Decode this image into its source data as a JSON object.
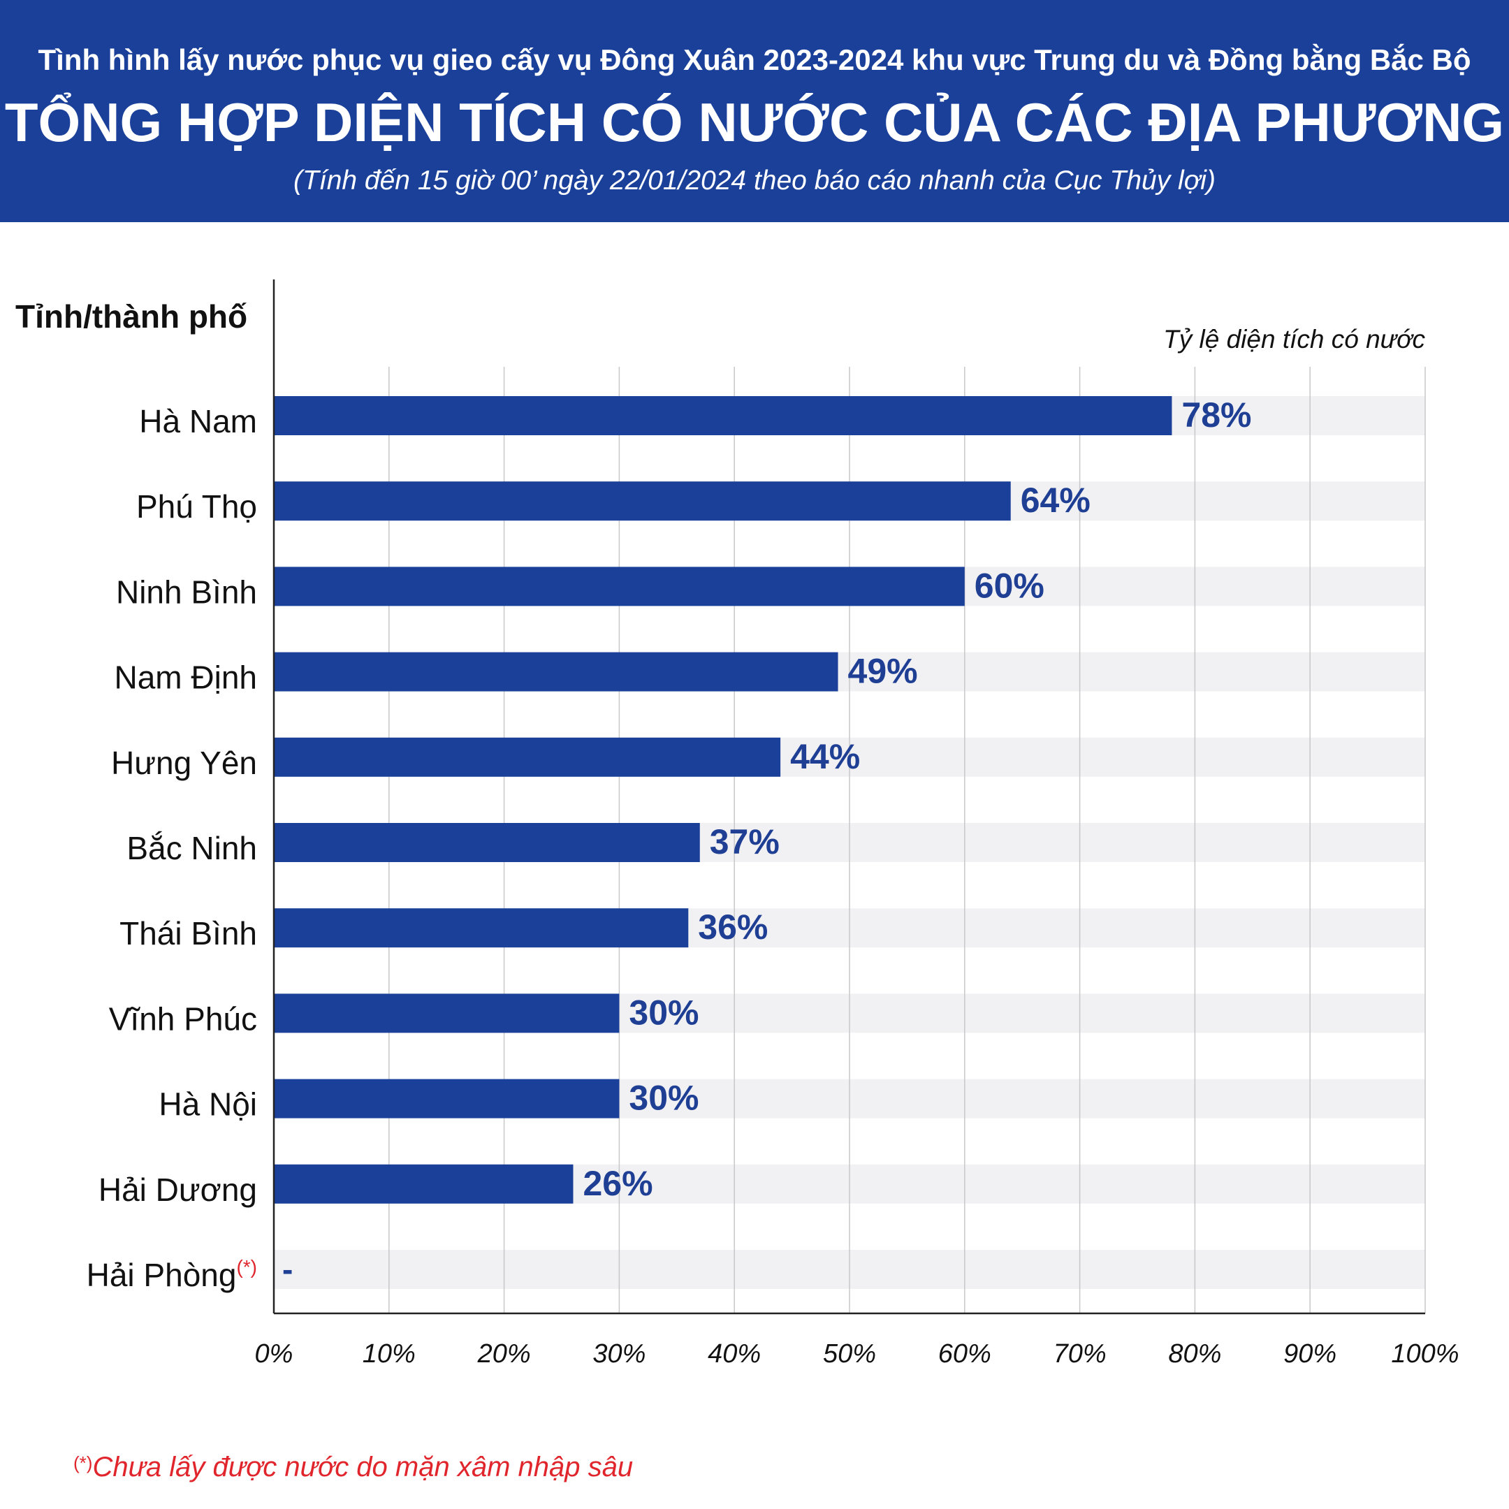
{
  "header": {
    "subtitle": "Tình hình lấy nước phục vụ gieo cấy vụ Đông Xuân 2023-2024 khu vực Trung du và Đồng bằng Bắc Bộ",
    "title": "TỔNG HỢP DIỆN TÍCH CÓ NƯỚC CỦA CÁC ĐỊA PHƯƠNG",
    "note": "(Tính đến 15 giờ 00’ ngày 22/01/2024 theo báo cáo nhanh của Cục Thủy lợi)"
  },
  "footnote": {
    "mark": "(*)",
    "text": "Chưa lấy được nước do mặn xâm nhập sâu"
  },
  "colors": {
    "header_bg": "#1a4099",
    "bar": "#1a4099",
    "value_label": "#1f3f94",
    "band": "#f1f1f4",
    "gridline": "#c8c8c8",
    "footnote": "#e0262c"
  },
  "chart_data": {
    "type": "bar",
    "orientation": "horizontal",
    "ylabel": "Tỉnh/thành phố",
    "xlabel": "Tỷ lệ diện tích có nước",
    "xlim": [
      0,
      100
    ],
    "xticks": [
      "0%",
      "10%",
      "20%",
      "30%",
      "40%",
      "50%",
      "60%",
      "70%",
      "80%",
      "90%",
      "100%"
    ],
    "grid": true,
    "categories": [
      "Hà Nam",
      "Phú Thọ",
      "Ninh Bình",
      "Nam Định",
      "Hưng Yên",
      "Bắc Ninh",
      "Thái Bình",
      "Vĩnh Phúc",
      "Hà Nội",
      "Hải Dương",
      "Hải Phòng"
    ],
    "category_marks": [
      "",
      "",
      "",
      "",
      "",
      "",
      "",
      "",
      "",
      "",
      "(*)"
    ],
    "values": [
      78,
      64,
      60,
      49,
      44,
      37,
      36,
      30,
      30,
      26,
      null
    ],
    "data_labels": [
      "78%",
      "64%",
      "60%",
      "49%",
      "44%",
      "37%",
      "36%",
      "30%",
      "30%",
      "26%",
      "-"
    ]
  }
}
